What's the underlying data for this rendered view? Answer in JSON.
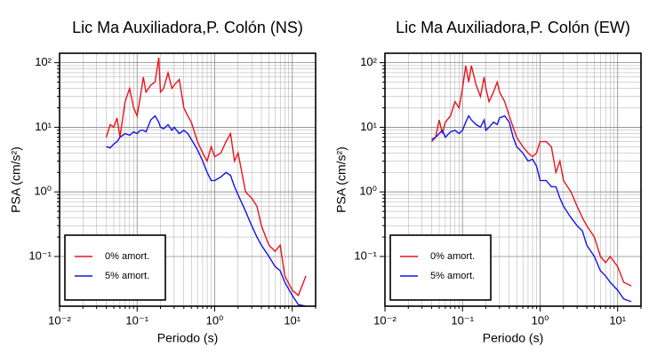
{
  "chart_data": [
    {
      "type": "line",
      "title": "Lic Ma Auxiliadora,P. Colón (NS)",
      "xlabel": "Periodo (s)",
      "ylabel": "PSA (cm/s²)",
      "x": [
        0.04,
        0.045,
        0.05,
        0.055,
        0.06,
        0.07,
        0.08,
        0.09,
        0.1,
        0.11,
        0.12,
        0.13,
        0.15,
        0.17,
        0.19,
        0.2,
        0.22,
        0.25,
        0.28,
        0.3,
        0.35,
        0.4,
        0.45,
        0.5,
        0.6,
        0.7,
        0.8,
        0.9,
        1.0,
        1.2,
        1.4,
        1.6,
        1.8,
        2.0,
        2.5,
        3.0,
        3.5,
        4,
        5,
        6,
        7,
        8,
        10,
        12,
        15
      ],
      "series": [
        {
          "name": "0% amort.",
          "color": "#e8141c",
          "values": [
            7,
            11,
            10,
            14,
            7,
            25,
            40,
            20,
            15,
            30,
            60,
            35,
            45,
            50,
            120,
            35,
            40,
            70,
            40,
            45,
            55,
            20,
            15,
            12,
            6,
            4,
            3,
            5,
            3.5,
            4,
            6,
            8,
            3,
            4,
            1,
            0.8,
            0.6,
            0.3,
            0.15,
            0.12,
            0.15,
            0.05,
            0.03,
            0.025,
            0.05
          ]
        },
        {
          "name": "5% amort.",
          "color": "#1414e8",
          "values": [
            5,
            4.8,
            5.5,
            6,
            7,
            8,
            7.5,
            8.5,
            8,
            9,
            9,
            8.5,
            13,
            15,
            12,
            10,
            9.5,
            11,
            9,
            10,
            8,
            9,
            8,
            6.5,
            4.5,
            3,
            2,
            1.5,
            1.5,
            1.7,
            2,
            1.8,
            1.2,
            0.9,
            0.5,
            0.3,
            0.2,
            0.15,
            0.1,
            0.07,
            0.06,
            0.04,
            0.025,
            0.018,
            0.017
          ]
        }
      ],
      "xlim": [
        0.01,
        20
      ],
      "ylim": [
        0.017,
        140
      ],
      "xticks": [
        {
          "value": 0.01,
          "label": "10⁻²"
        },
        {
          "value": 0.1,
          "label": "10⁻¹"
        },
        {
          "value": 1,
          "label": "10⁰"
        },
        {
          "value": 10,
          "label": "10¹"
        }
      ],
      "yticks": [
        {
          "value": 0.1,
          "label": "10⁻¹"
        },
        {
          "value": 1,
          "label": "10⁰"
        },
        {
          "value": 10,
          "label": "10¹"
        },
        {
          "value": 100,
          "label": "10²"
        }
      ],
      "log_x": true,
      "log_y": true,
      "grid": true,
      "legend": "lower left"
    },
    {
      "type": "line",
      "title": "Lic Ma Auxiliadora,P. Colón (EW)",
      "xlabel": "Periodo (s)",
      "ylabel": "PSA (cm/s²)",
      "x": [
        0.04,
        0.045,
        0.05,
        0.055,
        0.06,
        0.07,
        0.08,
        0.09,
        0.1,
        0.11,
        0.12,
        0.13,
        0.15,
        0.17,
        0.19,
        0.2,
        0.22,
        0.25,
        0.28,
        0.3,
        0.35,
        0.4,
        0.45,
        0.5,
        0.6,
        0.7,
        0.8,
        0.9,
        1.0,
        1.2,
        1.4,
        1.6,
        1.8,
        2.0,
        2.5,
        3.0,
        3.5,
        4,
        5,
        6,
        7,
        8,
        10,
        12,
        15
      ],
      "series": [
        {
          "name": "0% amort.",
          "color": "#e8141c",
          "values": [
            6,
            7,
            13,
            8,
            12,
            15,
            25,
            20,
            40,
            90,
            50,
            90,
            45,
            30,
            60,
            40,
            25,
            35,
            50,
            35,
            25,
            15,
            10,
            7,
            5,
            4,
            3.5,
            4,
            6,
            6,
            5,
            2,
            3,
            1.5,
            1,
            0.6,
            0.4,
            0.3,
            0.2,
            0.1,
            0.08,
            0.1,
            0.07,
            0.04,
            0.035
          ]
        },
        {
          "name": "5% amort.",
          "color": "#1414e8",
          "values": [
            6.5,
            7,
            8,
            9,
            7,
            8.5,
            9,
            8,
            9,
            12,
            15,
            13,
            11,
            10,
            13,
            9,
            10,
            12,
            11,
            14,
            15,
            12,
            7,
            5,
            4,
            3,
            3.2,
            2.5,
            1.5,
            1.5,
            1.2,
            1.2,
            0.8,
            0.6,
            0.4,
            0.3,
            0.25,
            0.15,
            0.1,
            0.06,
            0.05,
            0.04,
            0.03,
            0.022,
            0.02
          ]
        }
      ],
      "xlim": [
        0.01,
        20
      ],
      "ylim": [
        0.017,
        140
      ],
      "xticks": [
        {
          "value": 0.01,
          "label": "10⁻²"
        },
        {
          "value": 0.1,
          "label": "10⁻¹"
        },
        {
          "value": 1,
          "label": "10⁰"
        },
        {
          "value": 10,
          "label": "10¹"
        }
      ],
      "yticks": [
        {
          "value": 0.1,
          "label": "10⁻¹"
        },
        {
          "value": 1,
          "label": "10⁰"
        },
        {
          "value": 10,
          "label": "10¹"
        },
        {
          "value": 100,
          "label": "10²"
        }
      ],
      "log_x": true,
      "log_y": true,
      "grid": true,
      "legend": "lower left"
    }
  ]
}
